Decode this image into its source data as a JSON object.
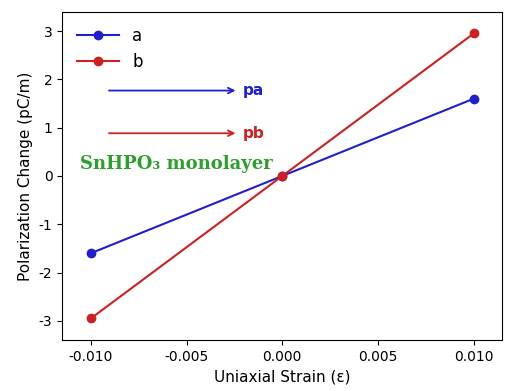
{
  "chart_data": {
    "type": "line",
    "xlabel": "Uniaxial Strain (ε)",
    "ylabel": "Polarization Change (pC/m)",
    "x": [
      -0.01,
      0.0,
      0.01
    ],
    "series": [
      {
        "name": "a",
        "color": "#1f1fd0",
        "marker": "o",
        "line_style": "solid",
        "values": [
          -1.6,
          0.0,
          1.6
        ]
      },
      {
        "name": "b",
        "color": "#d01f1f",
        "marker": "o",
        "line_style": "solid",
        "values": [
          -2.95,
          0.0,
          2.95
        ]
      }
    ],
    "xlim": [
      -0.0115,
      0.0115
    ],
    "ylim": [
      -3.4,
      3.4
    ],
    "xticks": [
      {
        "value": -0.01,
        "label": "-0.010"
      },
      {
        "value": -0.005,
        "label": "-0.005"
      },
      {
        "value": 0.0,
        "label": "0.000"
      },
      {
        "value": 0.005,
        "label": "0.005"
      },
      {
        "value": 0.01,
        "label": "0.010"
      }
    ],
    "yticks": [
      -3,
      -2,
      -1,
      0,
      1,
      2,
      3
    ],
    "legend": "upper left",
    "grid": false,
    "annotations": [
      {
        "text": "SnHPO₃ monolayer",
        "color": "#2ca02c"
      },
      {
        "text": "pa",
        "color": "#1f1fd0"
      },
      {
        "text": "pb",
        "color": "#d01f1f"
      }
    ]
  }
}
